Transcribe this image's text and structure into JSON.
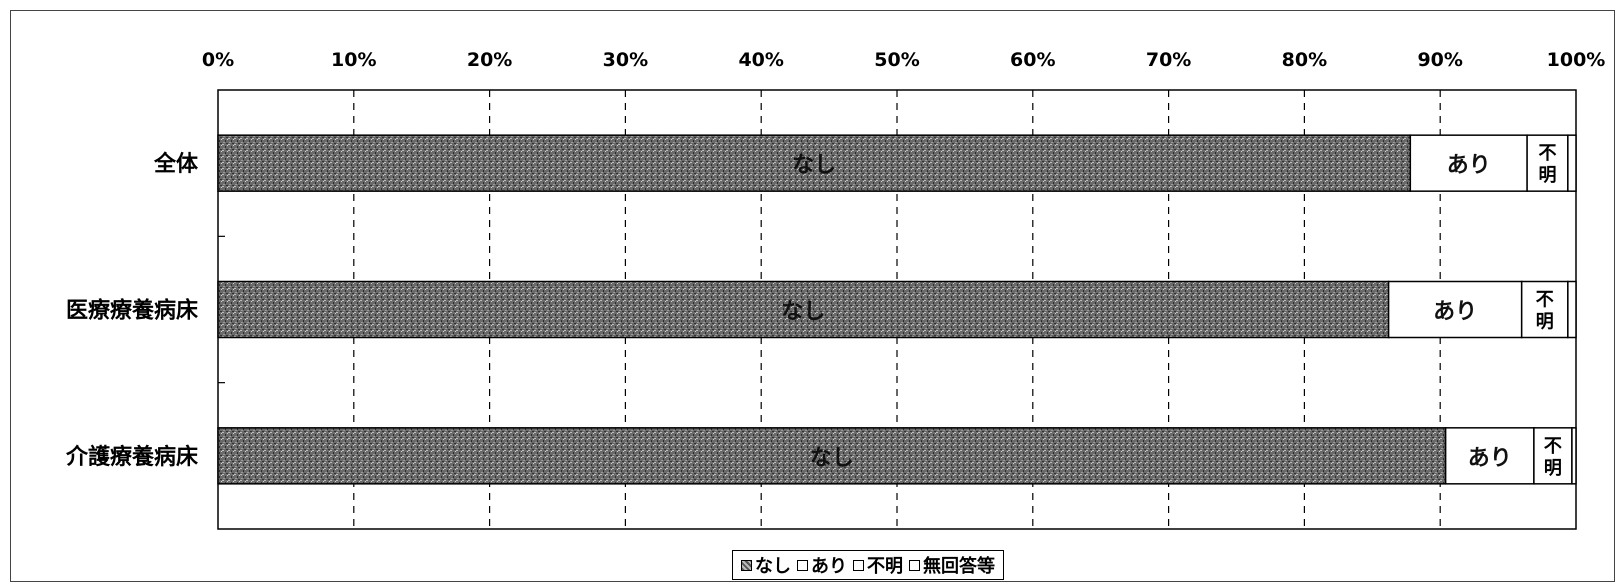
{
  "chart_data": {
    "type": "bar",
    "orientation": "horizontal",
    "stacked": true,
    "percent": true,
    "categories": [
      "全体",
      "医療療養病床",
      "介護療養病床"
    ],
    "series": [
      {
        "name": "なし",
        "values": [
          87.8,
          86.2,
          90.4
        ],
        "color": "#5a5a5a",
        "label": "なし"
      },
      {
        "name": "あり",
        "values": [
          8.6,
          9.8,
          6.5
        ],
        "color": "#ffffff",
        "label": "あり"
      },
      {
        "name": "不明",
        "values": [
          3.0,
          3.4,
          2.8
        ],
        "color": "#ffffff",
        "label": "不明"
      },
      {
        "name": "無回答等",
        "values": [
          0.6,
          0.6,
          0.3
        ],
        "color": "#ffffff",
        "label": ""
      }
    ],
    "xlim": [
      0,
      100
    ],
    "x_ticks": [
      "0%",
      "10%",
      "20%",
      "30%",
      "40%",
      "50%",
      "60%",
      "70%",
      "80%",
      "90%",
      "100%"
    ],
    "grid": true,
    "legend_position": "bottom"
  },
  "legend": {
    "items": [
      {
        "label": "なし",
        "style": "dark"
      },
      {
        "label": "あり",
        "style": "light"
      },
      {
        "label": "不明",
        "style": "light"
      },
      {
        "label": "無回答等",
        "style": "light"
      }
    ]
  }
}
